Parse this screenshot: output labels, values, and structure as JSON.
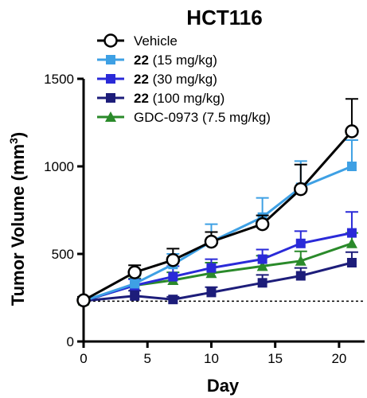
{
  "chart_data": {
    "type": "line",
    "title": "HCT116",
    "xlabel": "Day",
    "ylabel_main": "Tumor Volume (mm",
    "ylabel_sup": "3",
    "ylabel_end": ")",
    "xlim": [
      0,
      22
    ],
    "ylim": [
      0,
      1500
    ],
    "xticks": [
      0,
      5,
      10,
      15,
      20
    ],
    "yticks": [
      0,
      500,
      1000,
      1500
    ],
    "xtick_labels": [
      "0",
      "5",
      "10",
      "15",
      "20"
    ],
    "ytick_labels": [
      "0",
      "500",
      "1000",
      "1500"
    ],
    "baseline": 230,
    "legend_position": "top-left",
    "grid": false,
    "series": [
      {
        "name_bold": "",
        "name_rest": "Vehicle",
        "color": "#000000",
        "marker": "circle-open",
        "x": [
          0,
          4,
          7,
          10,
          14,
          17,
          21
        ],
        "y": [
          235,
          395,
          465,
          570,
          670,
          870,
          1200
        ],
        "err": [
          20,
          40,
          65,
          55,
          50,
          140,
          185
        ]
      },
      {
        "name_bold": "22",
        "name_rest": " (15 mg/kg)",
        "color": "#3ea0e4",
        "marker": "square",
        "x": [
          0,
          4,
          7,
          10,
          14,
          17,
          21
        ],
        "y": [
          232,
          330,
          440,
          570,
          710,
          880,
          1000
        ],
        "err": [
          15,
          45,
          60,
          100,
          110,
          150,
          150
        ]
      },
      {
        "name_bold": "22",
        "name_rest": " (30 mg/kg)",
        "color": "#2a2ad8",
        "marker": "square",
        "x": [
          0,
          4,
          7,
          10,
          14,
          17,
          21
        ],
        "y": [
          232,
          320,
          370,
          420,
          470,
          560,
          620
        ],
        "err": [
          15,
          35,
          60,
          50,
          55,
          70,
          120
        ]
      },
      {
        "name_bold": "22",
        "name_rest": " (100 mg/kg)",
        "color": "#1d1d7a",
        "marker": "square",
        "x": [
          0,
          4,
          7,
          10,
          14,
          17,
          21
        ],
        "y": [
          232,
          260,
          240,
          280,
          335,
          375,
          450
        ],
        "err": [
          12,
          30,
          15,
          30,
          45,
          45,
          60
        ]
      },
      {
        "name_bold": "",
        "name_rest": "GDC-0973 (7.5 mg/kg)",
        "color": "#2a8a2a",
        "marker": "triangle",
        "x": [
          0,
          4,
          7,
          10,
          14,
          17,
          21
        ],
        "y": [
          232,
          320,
          350,
          390,
          430,
          460,
          560
        ],
        "err": [
          12,
          40,
          45,
          60,
          60,
          55,
          60
        ]
      }
    ]
  }
}
